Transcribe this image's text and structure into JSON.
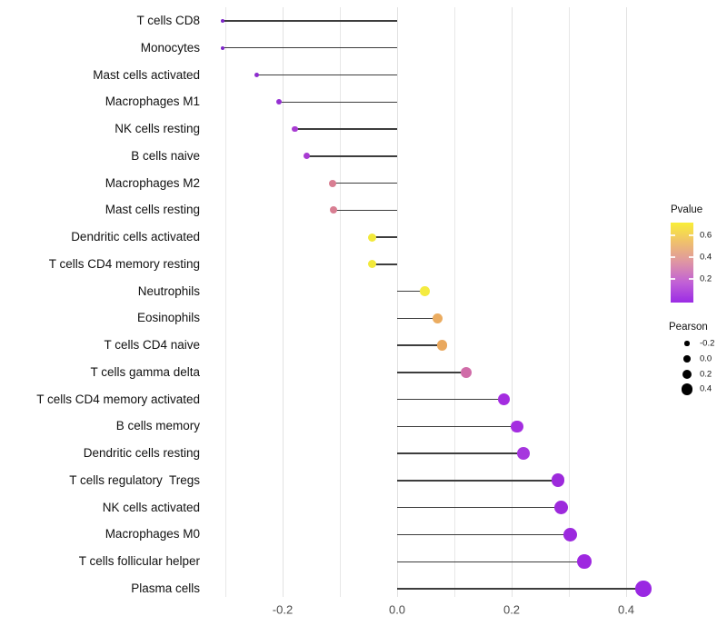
{
  "chart_data": {
    "type": "lollipop-scatter",
    "title": "",
    "xlabel": "",
    "ylabel": "",
    "x_tick_labels": [
      "-0.2",
      "0.0",
      "0.2",
      "0.4"
    ],
    "x_tick_values": [
      -0.2,
      0.0,
      0.2,
      0.4
    ],
    "x_gridline_values": [
      -0.3,
      -0.2,
      -0.1,
      0.0,
      0.1,
      0.2,
      0.3,
      0.4
    ],
    "xlim": [
      -0.34,
      0.47
    ],
    "rows": [
      {
        "label": "T cells CD8",
        "pearson": -0.305,
        "pvalue_est": 0.05,
        "color": "#7E26C9"
      },
      {
        "label": "Monocytes",
        "pearson": -0.305,
        "pvalue_est": 0.05,
        "color": "#7E26C9"
      },
      {
        "label": "Mast cells activated",
        "pearson": -0.245,
        "pvalue_est": 0.1,
        "color": "#8D2CCE"
      },
      {
        "label": "Macrophages M1",
        "pearson": -0.206,
        "pvalue_est": 0.13,
        "color": "#9530D2"
      },
      {
        "label": "NK cells resting",
        "pearson": -0.178,
        "pvalue_est": 0.2,
        "color": "#A83BD2"
      },
      {
        "label": "B cells naive",
        "pearson": -0.158,
        "pvalue_est": 0.2,
        "color": "#A83BD2"
      },
      {
        "label": "Macrophages M2",
        "pearson": -0.113,
        "pvalue_est": 0.42,
        "color": "#D87E92"
      },
      {
        "label": "Mast cells resting",
        "pearson": -0.111,
        "pvalue_est": 0.42,
        "color": "#D87E92"
      },
      {
        "label": "Dendritic cells activated",
        "pearson": -0.044,
        "pvalue_est": 0.68,
        "color": "#F2E93B"
      },
      {
        "label": "T cells CD4 memory resting",
        "pearson": -0.043,
        "pvalue_est": 0.68,
        "color": "#F2E93B"
      },
      {
        "label": "Neutrophils",
        "pearson": 0.048,
        "pvalue_est": 0.69,
        "color": "#F4EB40"
      },
      {
        "label": "Eosinophils",
        "pearson": 0.07,
        "pvalue_est": 0.52,
        "color": "#EBAC60"
      },
      {
        "label": "T cells CD4 naive",
        "pearson": 0.079,
        "pvalue_est": 0.51,
        "color": "#E9A85E"
      },
      {
        "label": "T cells gamma delta",
        "pearson": 0.121,
        "pvalue_est": 0.38,
        "color": "#D06CA8"
      },
      {
        "label": "T cells CD4 memory activated",
        "pearson": 0.187,
        "pvalue_est": 0.17,
        "color": "#A42DE0"
      },
      {
        "label": "B cells memory",
        "pearson": 0.21,
        "pvalue_est": 0.17,
        "color": "#A42DE0"
      },
      {
        "label": "Dendritic cells resting",
        "pearson": 0.221,
        "pvalue_est": 0.18,
        "color": "#A636DE"
      },
      {
        "label": "T cells regulatory  Tregs",
        "pearson": 0.281,
        "pvalue_est": 0.14,
        "color": "#9D2ADC"
      },
      {
        "label": "NK cells activated",
        "pearson": 0.287,
        "pvalue_est": 0.14,
        "color": "#9D2ADC"
      },
      {
        "label": "Macrophages M0",
        "pearson": 0.302,
        "pvalue_est": 0.13,
        "color": "#9C2ADE"
      },
      {
        "label": "T cells follicular helper",
        "pearson": 0.327,
        "pvalue_est": 0.12,
        "color": "#9E28E0"
      },
      {
        "label": "Plasma cells",
        "pearson": 0.43,
        "pvalue_est": 0.1,
        "color": "#9A28E2"
      }
    ],
    "legend": {
      "pvalue_title": "Pvalue",
      "pvalue_ticks": [
        "0.6",
        "0.4",
        "0.2"
      ],
      "pvalue_range_shown": [
        0.0,
        0.72
      ],
      "pvalue_gradient_top_to_bottom": [
        "#F9EE38",
        "#EFBF6E",
        "#DE94A5",
        "#C161D6",
        "#9B2BE5"
      ],
      "pearson_title": "Pearson",
      "pearson_sizes": [
        {
          "label": "-0.2",
          "value": -0.2
        },
        {
          "label": "0.0",
          "value": 0.0
        },
        {
          "label": "0.2",
          "value": 0.2
        },
        {
          "label": "0.4",
          "value": 0.4
        }
      ],
      "position": "right"
    },
    "layout_hints": {
      "grid": "light vertical gridlines only",
      "stem_color": "#3d3d3d",
      "background": "#ffffff"
    }
  }
}
